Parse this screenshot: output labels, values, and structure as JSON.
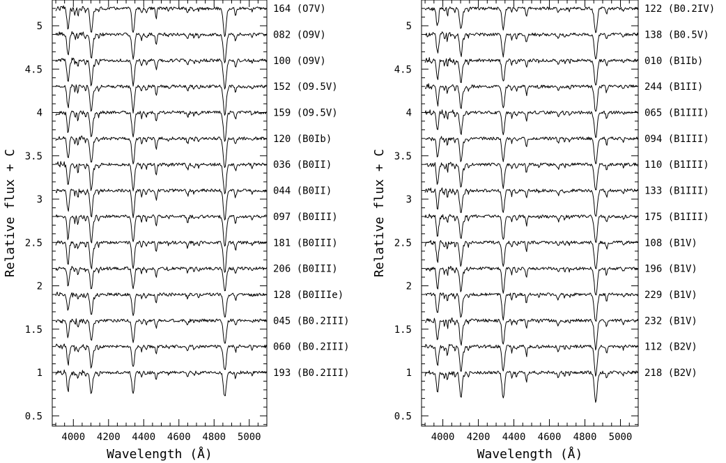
{
  "chart_data": [
    {
      "type": "line",
      "xlabel": "Wavelength (Å)",
      "ylabel": "Relative flux + C",
      "xlim": [
        3880,
        5100
      ],
      "ylim": [
        0.35,
        5.35
      ],
      "xticks": [
        4000,
        4200,
        4400,
        4600,
        4800,
        5000
      ],
      "xtick_labels": [
        "4000",
        "4200",
        "4400",
        "4600",
        "4800",
        "5000"
      ],
      "yticks": [
        0.5,
        1,
        1.5,
        2,
        2.5,
        3,
        3.5,
        4,
        4.5,
        5
      ],
      "ytick_labels": [
        "0.5",
        "1",
        "1.5",
        "2",
        "2.5",
        "3",
        "3.5",
        "4",
        "4.5",
        "5"
      ],
      "grid": false,
      "series": [
        {
          "name": "164 (O7V)",
          "offset": 5.2
        },
        {
          "name": "082 (O9V)",
          "offset": 4.9
        },
        {
          "name": "100 (O9V)",
          "offset": 4.6
        },
        {
          "name": "152 (O9.5V)",
          "offset": 4.3
        },
        {
          "name": "159 (O9.5V)",
          "offset": 4.0
        },
        {
          "name": "120 (B0Ib)",
          "offset": 3.7
        },
        {
          "name": "036 (B0II)",
          "offset": 3.4
        },
        {
          "name": "044 (B0II)",
          "offset": 3.1
        },
        {
          "name": "097 (B0III)",
          "offset": 2.8
        },
        {
          "name": "181 (B0III)",
          "offset": 2.5
        },
        {
          "name": "206 (B0III)",
          "offset": 2.2
        },
        {
          "name": "128 (B0IIIe)",
          "offset": 1.9
        },
        {
          "name": "045 (B0.2III)",
          "offset": 1.6
        },
        {
          "name": "060 (B0.2III)",
          "offset": 1.3
        },
        {
          "name": "193 (B0.2III)",
          "offset": 1.0
        }
      ]
    },
    {
      "type": "line",
      "xlabel": "Wavelength (Å)",
      "ylabel": "Relative flux + C",
      "xlim": [
        3880,
        5100
      ],
      "ylim": [
        0.35,
        5.35
      ],
      "xticks": [
        4000,
        4200,
        4400,
        4600,
        4800,
        5000
      ],
      "xtick_labels": [
        "4000",
        "4200",
        "4400",
        "4600",
        "4800",
        "5000"
      ],
      "yticks": [
        0.5,
        1,
        1.5,
        2,
        2.5,
        3,
        3.5,
        4,
        4.5,
        5
      ],
      "ytick_labels": [
        "0.5",
        "1",
        "1.5",
        "2",
        "2.5",
        "3",
        "3.5",
        "4",
        "4.5",
        "5"
      ],
      "grid": false,
      "series": [
        {
          "name": "122 (B0.2IV)",
          "offset": 5.2
        },
        {
          "name": "138 (B0.5V)",
          "offset": 4.9
        },
        {
          "name": "010 (B1Ib)",
          "offset": 4.6
        },
        {
          "name": "244 (B1II)",
          "offset": 4.3
        },
        {
          "name": "065 (B1III)",
          "offset": 4.0
        },
        {
          "name": "094 (B1III)",
          "offset": 3.7
        },
        {
          "name": "110 (B1III)",
          "offset": 3.4
        },
        {
          "name": "133 (B1III)",
          "offset": 3.1
        },
        {
          "name": "175 (B1III)",
          "offset": 2.8
        },
        {
          "name": "108 (B1V)",
          "offset": 2.5
        },
        {
          "name": "196 (B1V)",
          "offset": 2.2
        },
        {
          "name": "229 (B1V)",
          "offset": 1.9
        },
        {
          "name": "232 (B1V)",
          "offset": 1.6
        },
        {
          "name": "112 (B2V)",
          "offset": 1.3
        },
        {
          "name": "218 (B2V)",
          "offset": 1.0
        }
      ]
    }
  ]
}
